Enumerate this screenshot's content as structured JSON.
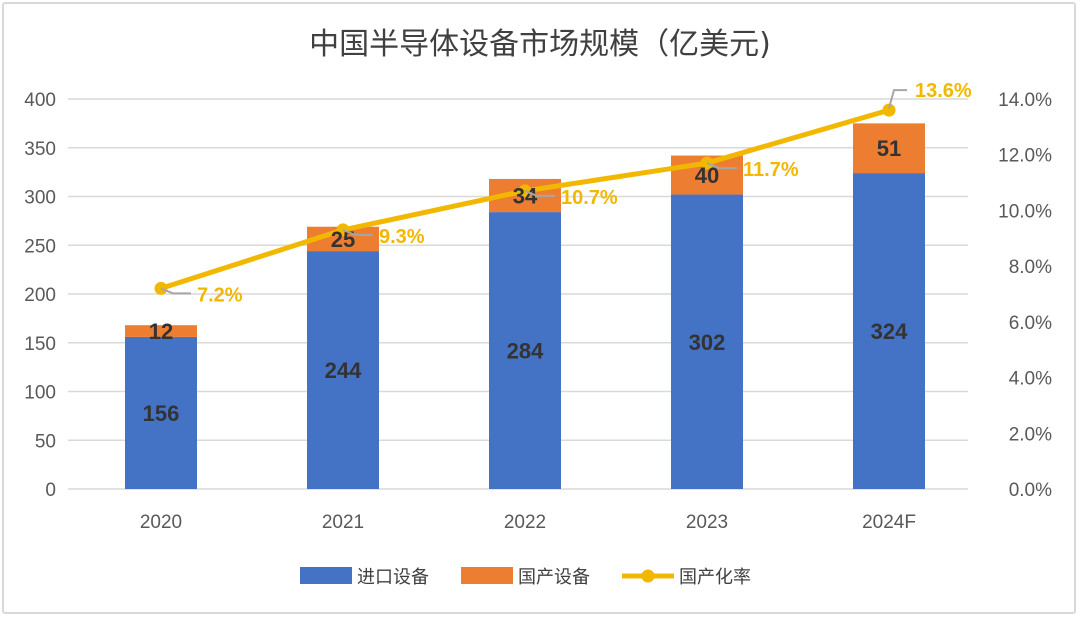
{
  "chart_data": {
    "type": "bar",
    "stacked": true,
    "title": "中国半导体设备市场规模（亿美元)",
    "categories": [
      "2020",
      "2021",
      "2022",
      "2023",
      "2024F"
    ],
    "series": [
      {
        "name": "进口设备",
        "type": "bar",
        "axis": "left",
        "color": "#4472c4",
        "values": [
          156,
          244,
          284,
          302,
          324
        ]
      },
      {
        "name": "国产设备",
        "type": "bar",
        "axis": "left",
        "color": "#ed7d31",
        "values": [
          12,
          25,
          34,
          40,
          51
        ]
      },
      {
        "name": "国产化率",
        "type": "line",
        "axis": "right",
        "color": "#f2b800",
        "values": [
          7.2,
          9.3,
          10.7,
          11.7,
          13.6
        ],
        "labels": [
          "7.2%",
          "9.3%",
          "10.7%",
          "11.7%",
          "13.6%"
        ]
      }
    ],
    "y_left": {
      "range": [
        0,
        400
      ],
      "ticks": [
        "0",
        "50",
        "100",
        "150",
        "200",
        "250",
        "300",
        "350",
        "400"
      ]
    },
    "y_right": {
      "range": [
        0,
        14
      ],
      "ticks": [
        "0.0%",
        "2.0%",
        "4.0%",
        "6.0%",
        "8.0%",
        "10.0%",
        "12.0%",
        "14.0%"
      ]
    },
    "grid": true,
    "legend": "bottom"
  }
}
